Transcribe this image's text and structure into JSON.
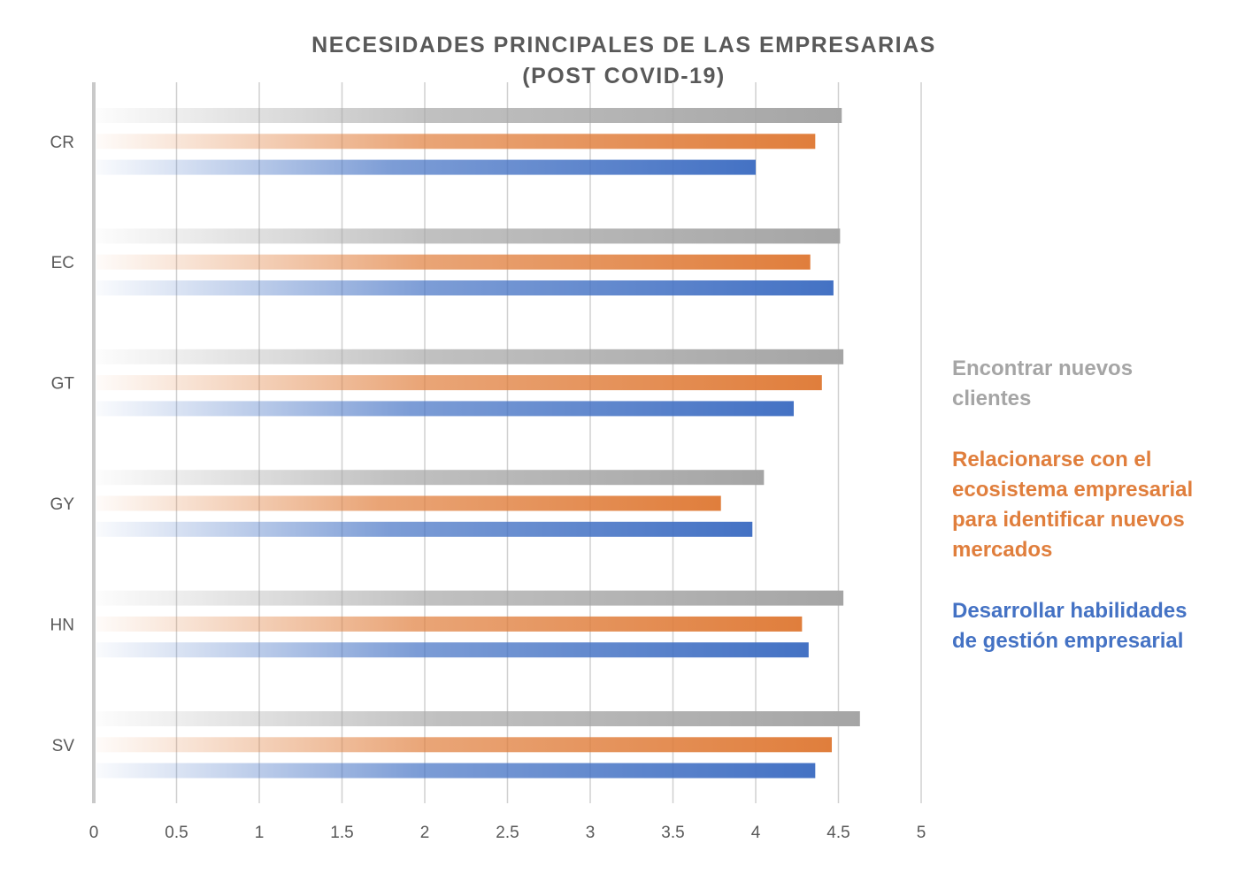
{
  "chart_data": {
    "type": "bar",
    "orientation": "horizontal",
    "title": [
      "NECESIDADES PRINCIPALES DE LAS EMPRESARIAS",
      "(POST COVID-19)"
    ],
    "categories": [
      "CR",
      "EC",
      "GT",
      "GY",
      "HN",
      "SV"
    ],
    "xlim": [
      0,
      5
    ],
    "xticks": [
      "0",
      "0.5",
      "1",
      "1.5",
      "2",
      "2.5",
      "3",
      "3.5",
      "4",
      "4.5",
      "5"
    ],
    "grid": true,
    "legend_position": "right",
    "series": [
      {
        "name": "Encontrar nuevos clientes",
        "color": "#A5A5A5",
        "values": [
          4.52,
          4.51,
          4.53,
          4.05,
          4.53,
          4.63
        ]
      },
      {
        "name": "Relacionarse con el ecosistema empresarial para identificar nuevos mercados",
        "color": "#E07E3C",
        "values": [
          4.36,
          4.33,
          4.4,
          3.79,
          4.28,
          4.46
        ]
      },
      {
        "name": "Desarrollar habilidades de gestión empresarial",
        "color": "#4472C4",
        "values": [
          4.0,
          4.47,
          4.23,
          3.98,
          4.32,
          4.36
        ]
      }
    ]
  }
}
